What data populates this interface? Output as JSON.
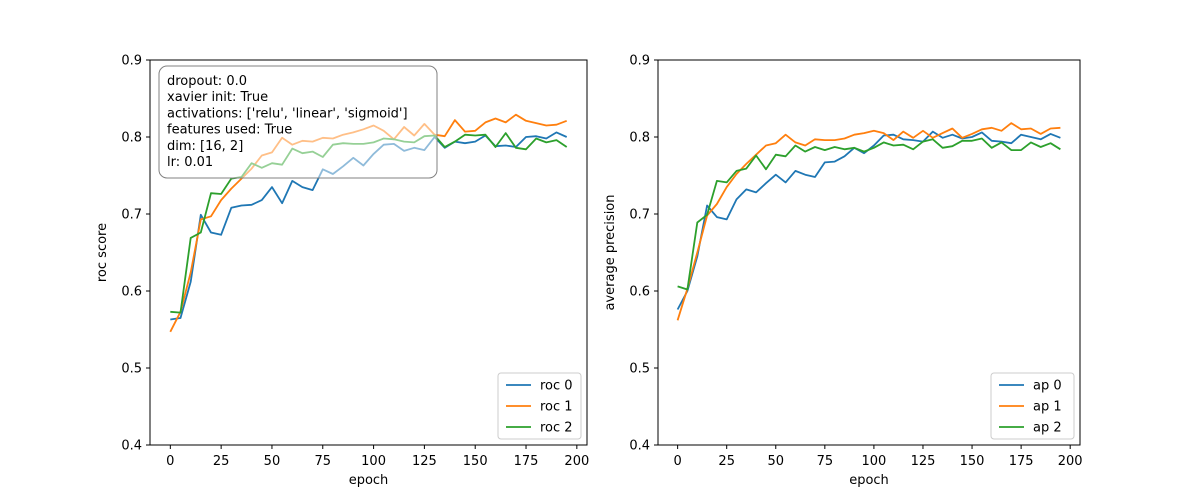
{
  "chart_data": [
    {
      "type": "line",
      "xlabel": "epoch",
      "ylabel": "roc score",
      "xlim": [
        -10,
        205
      ],
      "ylim": [
        0.4,
        0.9
      ],
      "xticks": [
        0,
        25,
        50,
        75,
        100,
        125,
        150,
        175,
        200
      ],
      "yticks": [
        0.4,
        0.5,
        0.6,
        0.7,
        0.8,
        0.9
      ],
      "legend_position": "lower-right",
      "x": [
        0,
        5,
        10,
        15,
        20,
        25,
        30,
        35,
        40,
        45,
        50,
        55,
        60,
        65,
        70,
        75,
        80,
        85,
        90,
        95,
        100,
        105,
        110,
        115,
        120,
        125,
        130,
        135,
        140,
        145,
        150,
        155,
        160,
        165,
        170,
        175,
        180,
        185,
        190,
        195
      ],
      "series": [
        {
          "name": "roc 0",
          "color": "#1f77b4",
          "values": [
            0.563,
            0.565,
            0.612,
            0.699,
            0.676,
            0.673,
            0.708,
            0.711,
            0.712,
            0.718,
            0.735,
            0.714,
            0.743,
            0.735,
            0.731,
            0.758,
            0.752,
            0.762,
            0.773,
            0.763,
            0.778,
            0.79,
            0.791,
            0.782,
            0.786,
            0.783,
            0.8,
            0.786,
            0.794,
            0.792,
            0.794,
            0.802,
            0.788,
            0.789,
            0.787,
            0.8,
            0.801,
            0.798,
            0.806,
            0.8
          ]
        },
        {
          "name": "roc 1",
          "color": "#ff7f0e",
          "values": [
            0.547,
            0.573,
            0.624,
            0.693,
            0.697,
            0.718,
            0.733,
            0.746,
            0.759,
            0.776,
            0.78,
            0.799,
            0.79,
            0.795,
            0.794,
            0.799,
            0.798,
            0.803,
            0.806,
            0.81,
            0.815,
            0.808,
            0.797,
            0.813,
            0.802,
            0.817,
            0.803,
            0.801,
            0.822,
            0.807,
            0.808,
            0.819,
            0.824,
            0.819,
            0.829,
            0.821,
            0.818,
            0.815,
            0.816,
            0.821
          ]
        },
        {
          "name": "roc 2",
          "color": "#2ca02c",
          "values": [
            0.573,
            0.572,
            0.669,
            0.676,
            0.727,
            0.726,
            0.746,
            0.748,
            0.766,
            0.76,
            0.766,
            0.764,
            0.785,
            0.779,
            0.781,
            0.774,
            0.79,
            0.792,
            0.791,
            0.791,
            0.793,
            0.798,
            0.797,
            0.794,
            0.793,
            0.801,
            0.802,
            0.787,
            0.794,
            0.803,
            0.802,
            0.803,
            0.787,
            0.805,
            0.786,
            0.784,
            0.798,
            0.793,
            0.796,
            0.787
          ]
        }
      ],
      "annotation": {
        "lines": [
          "dropout: 0.0",
          "xavier init: True",
          "activations: ['relu', 'linear', 'sigmoid']",
          "features used: True",
          "dim: [16, 2]",
          "lr: 0.01"
        ],
        "position": "top-left"
      }
    },
    {
      "type": "line",
      "xlabel": "epoch",
      "ylabel": "average precision",
      "xlim": [
        -10,
        205
      ],
      "ylim": [
        0.4,
        0.9
      ],
      "xticks": [
        0,
        25,
        50,
        75,
        100,
        125,
        150,
        175,
        200
      ],
      "yticks": [
        0.4,
        0.5,
        0.6,
        0.7,
        0.8,
        0.9
      ],
      "legend_position": "lower-right",
      "x": [
        0,
        5,
        10,
        15,
        20,
        25,
        30,
        35,
        40,
        45,
        50,
        55,
        60,
        65,
        70,
        75,
        80,
        85,
        90,
        95,
        100,
        105,
        110,
        115,
        120,
        125,
        130,
        135,
        140,
        145,
        150,
        155,
        160,
        165,
        170,
        175,
        180,
        185,
        190,
        195
      ],
      "series": [
        {
          "name": "ap 0",
          "color": "#1f77b4",
          "values": [
            0.576,
            0.6,
            0.645,
            0.711,
            0.696,
            0.693,
            0.719,
            0.732,
            0.728,
            0.74,
            0.751,
            0.741,
            0.756,
            0.751,
            0.748,
            0.767,
            0.768,
            0.775,
            0.786,
            0.779,
            0.789,
            0.802,
            0.803,
            0.797,
            0.796,
            0.794,
            0.807,
            0.799,
            0.803,
            0.798,
            0.8,
            0.806,
            0.795,
            0.794,
            0.792,
            0.803,
            0.8,
            0.797,
            0.804,
            0.799
          ]
        },
        {
          "name": "ap 1",
          "color": "#ff7f0e",
          "values": [
            0.562,
            0.603,
            0.65,
            0.698,
            0.713,
            0.735,
            0.752,
            0.765,
            0.777,
            0.789,
            0.792,
            0.803,
            0.793,
            0.789,
            0.797,
            0.796,
            0.796,
            0.798,
            0.803,
            0.805,
            0.808,
            0.805,
            0.796,
            0.807,
            0.799,
            0.808,
            0.799,
            0.805,
            0.811,
            0.799,
            0.804,
            0.81,
            0.812,
            0.808,
            0.818,
            0.81,
            0.811,
            0.804,
            0.811,
            0.812
          ]
        },
        {
          "name": "ap 2",
          "color": "#2ca02c",
          "values": [
            0.606,
            0.602,
            0.689,
            0.699,
            0.743,
            0.741,
            0.756,
            0.759,
            0.776,
            0.758,
            0.777,
            0.775,
            0.789,
            0.781,
            0.787,
            0.783,
            0.787,
            0.784,
            0.786,
            0.781,
            0.786,
            0.793,
            0.789,
            0.79,
            0.784,
            0.794,
            0.797,
            0.786,
            0.788,
            0.795,
            0.795,
            0.798,
            0.786,
            0.793,
            0.783,
            0.783,
            0.793,
            0.787,
            0.792,
            0.784
          ]
        }
      ]
    }
  ]
}
